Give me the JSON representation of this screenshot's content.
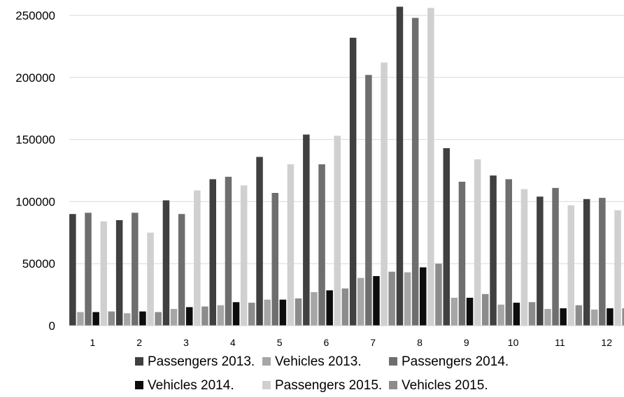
{
  "chart_data": {
    "type": "bar",
    "categories": [
      "1",
      "2",
      "3",
      "4",
      "5",
      "6",
      "7",
      "8",
      "9",
      "10",
      "11",
      "12"
    ],
    "series": [
      {
        "name": "Passengers 2013.",
        "color": "#404040",
        "values": [
          90000,
          85000,
          101000,
          118000,
          136000,
          154000,
          232000,
          257000,
          143000,
          121000,
          104000,
          102000
        ]
      },
      {
        "name": "Vehicles 2013.",
        "color": "#a6a6a6",
        "values": [
          11000,
          10000,
          13500,
          16500,
          21000,
          27000,
          38500,
          43000,
          22500,
          17000,
          13500,
          13000
        ]
      },
      {
        "name": "Passengers 2014.",
        "color": "#6e6e6e",
        "values": [
          91000,
          91000,
          90000,
          120000,
          107000,
          130000,
          202000,
          248000,
          116000,
          118000,
          111000,
          103000
        ]
      },
      {
        "name": "Vehicles 2014.",
        "color": "#0d0d0d",
        "values": [
          11000,
          11500,
          15000,
          19000,
          21000,
          28500,
          40000,
          47000,
          22500,
          18500,
          14000,
          14000
        ]
      },
      {
        "name": "Passengers 2015.",
        "color": "#d0d0d0",
        "values": [
          84000,
          75000,
          109000,
          113000,
          130000,
          153000,
          212000,
          256000,
          134000,
          110000,
          97000,
          93000
        ]
      },
      {
        "name": "Vehicles 2015.",
        "color": "#8c8c8c",
        "values": [
          11500,
          11000,
          15500,
          18500,
          22000,
          30000,
          43500,
          50000,
          25500,
          19000,
          16500,
          14000
        ]
      }
    ],
    "ylim": [
      0,
      250000
    ],
    "yticks": [
      0,
      50000,
      100000,
      150000,
      200000,
      250000
    ],
    "title": "",
    "xlabel": "",
    "ylabel": "",
    "grid": true,
    "legend_position": "bottom"
  }
}
